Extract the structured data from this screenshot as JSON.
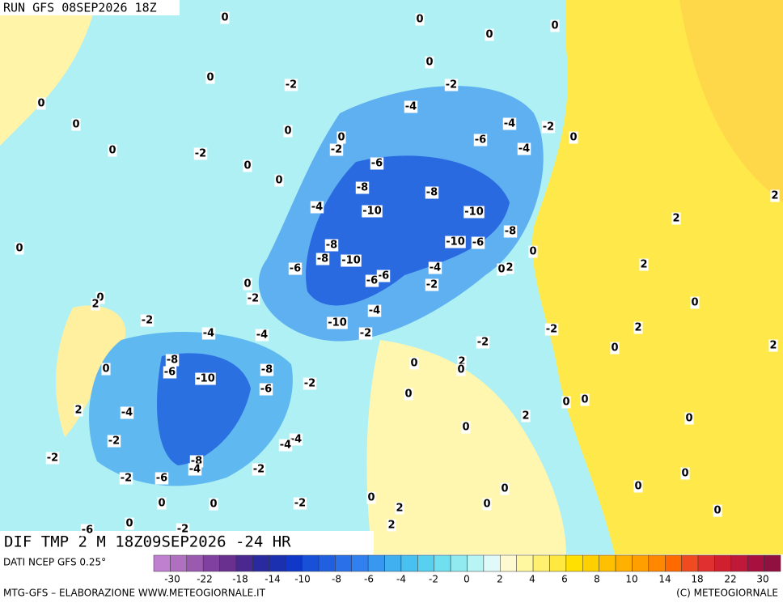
{
  "header": {
    "run": "RUN GFS 08SEP2026 18Z"
  },
  "map": {
    "title": "DIF TMP 2 M 18Z09SEP2026 -24 HR",
    "labels": [
      0,
      0,
      0,
      0,
      0,
      0,
      -2,
      -2,
      0,
      -4,
      0,
      -4,
      -2,
      0,
      0,
      -6,
      -4,
      0,
      0,
      -2,
      -2,
      -6,
      0,
      0,
      -8,
      -8,
      -4,
      -10,
      -10,
      2,
      2,
      0,
      -8,
      -8,
      -10,
      -6,
      0,
      2,
      -6,
      -8,
      -10,
      -4,
      2,
      0,
      -6,
      -6,
      0,
      -2,
      0,
      2,
      -2,
      0,
      -4,
      -2,
      -10,
      2,
      -4,
      -4,
      -2,
      -2,
      2,
      -2,
      0,
      -8,
      -6,
      0,
      2,
      -8,
      -10,
      -2,
      0,
      0,
      -6,
      0,
      0,
      0,
      2,
      -4,
      0,
      0,
      2,
      -2,
      -4,
      -4,
      -2,
      -8,
      -4,
      -2,
      -2,
      -6,
      0,
      0,
      0,
      0,
      0,
      0,
      -2,
      0,
      0,
      2,
      2,
      -2,
      0,
      -6
    ]
  },
  "colorbar": {
    "source": "DATI NCEP GFS 0.25°",
    "colors": [
      "#c080d0",
      "#b070c0",
      "#9a5ab0",
      "#8040a0",
      "#6a3090",
      "#4a2890",
      "#2a2aa0",
      "#1a30b0",
      "#1038c8",
      "#1850d8",
      "#2060e0",
      "#2a70e8",
      "#3080f0",
      "#3898f0",
      "#40b0f0",
      "#48c0f0",
      "#58d0f0",
      "#70e0f0",
      "#90eaf0",
      "#b8f4f4",
      "#e0fafa",
      "#fffad0",
      "#fff8a0",
      "#fff070",
      "#ffe840",
      "#ffe000",
      "#ffd000",
      "#ffc000",
      "#ffb000",
      "#ffa000",
      "#ff8800",
      "#ff6a00",
      "#f04a20",
      "#e03030",
      "#d02030",
      "#c01838",
      "#a81040",
      "#901040"
    ],
    "ticks": [
      -30,
      -22,
      -18,
      -14,
      -10,
      -8,
      -6,
      -4,
      -2,
      0,
      2,
      4,
      6,
      8,
      10,
      14,
      18,
      22,
      30
    ]
  },
  "footer": {
    "credit": "MTG-GFS – ELABORAZIONE WWW.METEOGIORNALE.IT",
    "copyright": "(C) METEOGIORNALE"
  }
}
